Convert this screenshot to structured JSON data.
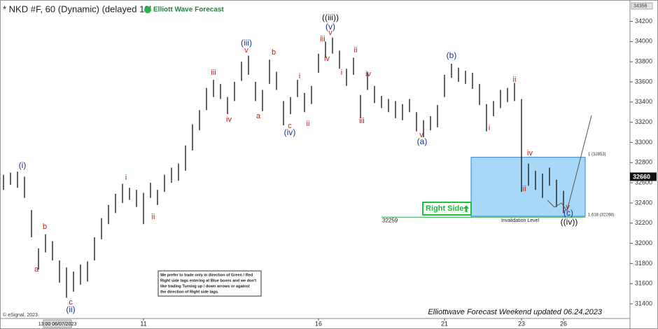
{
  "chart_data": {
    "type": "range",
    "title": "* NKD #F, 60 (Dynamic) (delayed 10'",
    "logo": "Elliott Wave Forecast",
    "categories": [
      null,
      null,
      null,
      null,
      null,
      null,
      null,
      null,
      null,
      null,
      null,
      null,
      null,
      null,
      null,
      null,
      null,
      null,
      null,
      null,
      "11",
      null,
      null,
      null,
      null,
      null,
      null,
      null,
      null,
      null,
      null,
      null,
      null,
      null,
      null,
      null,
      null,
      null,
      null,
      null,
      null,
      null,
      null,
      null,
      null,
      "16",
      null,
      null,
      null,
      null,
      null,
      null,
      null,
      null,
      null,
      null,
      null,
      null,
      null,
      null,
      null,
      null,
      null,
      "21",
      null,
      null,
      null,
      null,
      null,
      null,
      null,
      null,
      null,
      null,
      "23",
      null,
      null,
      null,
      null,
      null,
      "26"
    ],
    "high": [
      32680,
      32700,
      32710,
      32660,
      32330,
      31950,
      32090,
      32020,
      31830,
      31760,
      31720,
      31790,
      31820,
      32060,
      32250,
      32380,
      32490,
      32590,
      32550,
      32530,
      32500,
      32600,
      32530,
      32680,
      32750,
      32790,
      32970,
      33180,
      33320,
      33540,
      33620,
      33580,
      33450,
      33600,
      33800,
      33860,
      33600,
      33520,
      33820,
      33700,
      33410,
      33450,
      33620,
      33490,
      33560,
      33880,
      34000,
      34040,
      33910,
      33730,
      33840,
      33470,
      33700,
      33560,
      33460,
      33430,
      33410,
      33380,
      33430,
      33300,
      33220,
      33260,
      33370,
      33670,
      33780,
      33740,
      33710,
      33690,
      33580,
      33380,
      33410,
      33520,
      33540,
      33590,
      33430,
      32790,
      32720,
      32690,
      32750,
      32630,
      32520
    ],
    "low": [
      32530,
      32580,
      32550,
      32450,
      32060,
      31740,
      31910,
      31830,
      31610,
      31460,
      31520,
      31590,
      31620,
      31830,
      32040,
      32190,
      32300,
      32400,
      32430,
      32360,
      32190,
      32450,
      32380,
      32510,
      32600,
      32620,
      32720,
      32920,
      33120,
      33320,
      33450,
      33430,
      33280,
      33410,
      33610,
      33670,
      33410,
      33310,
      33580,
      33520,
      33170,
      33280,
      33450,
      33300,
      33380,
      33690,
      33840,
      33880,
      33730,
      33560,
      33670,
      33240,
      33520,
      33390,
      33340,
      33300,
      33240,
      33220,
      33300,
      33110,
      33050,
      33120,
      33150,
      33450,
      33640,
      33600,
      33580,
      33530,
      33370,
      33110,
      33260,
      33340,
      33400,
      33410,
      32510,
      32570,
      32530,
      32450,
      32570,
      32360,
      32300
    ],
    "color": "#1e1e1e",
    "ylim": [
      31220,
      34356
    ],
    "yticks": [
      31400,
      31600,
      31800,
      32000,
      32200,
      32400,
      32600,
      32800,
      33000,
      33200,
      33400,
      33600,
      33800,
      34000,
      34200
    ],
    "top_price": 34356,
    "last_price": 32660,
    "time_label": "13:00 06/07/2023",
    "copyright": "© eSignal, 2023",
    "wave_labels": [
      "(i)",
      "a",
      "b",
      "c",
      "(ii)",
      "i",
      "ii",
      "iii",
      "iv",
      "v",
      "(iii)",
      "a",
      "b",
      "c",
      "(iv)",
      "i",
      "ii",
      "iii",
      "iv",
      "v",
      "(v)",
      "((iii))",
      "i",
      "ii",
      "iii",
      "iv",
      "v",
      "(a)",
      "(b)",
      "i",
      "ii",
      "iv",
      "iii",
      "v",
      "(c)",
      "((iv))"
    ],
    "blue_box": {
      "top": 32853,
      "bottom": 32268,
      "top_label": "1 (32853)",
      "bottom_label": "1.618 (32268)"
    },
    "invalidation": {
      "value": 32259,
      "label": "Invalidation Level"
    },
    "right_side_tag": "Right Side",
    "note_lines": [
      "We prefer to trade only in direction of Green / Red",
      "Right side tags entering at Blue boxes and we don't",
      "like trading Turning up / down arrows or against",
      "the direction of Right side tags."
    ],
    "footer": "Elliottwave Forecast Weekend updated 06.24.2023"
  }
}
